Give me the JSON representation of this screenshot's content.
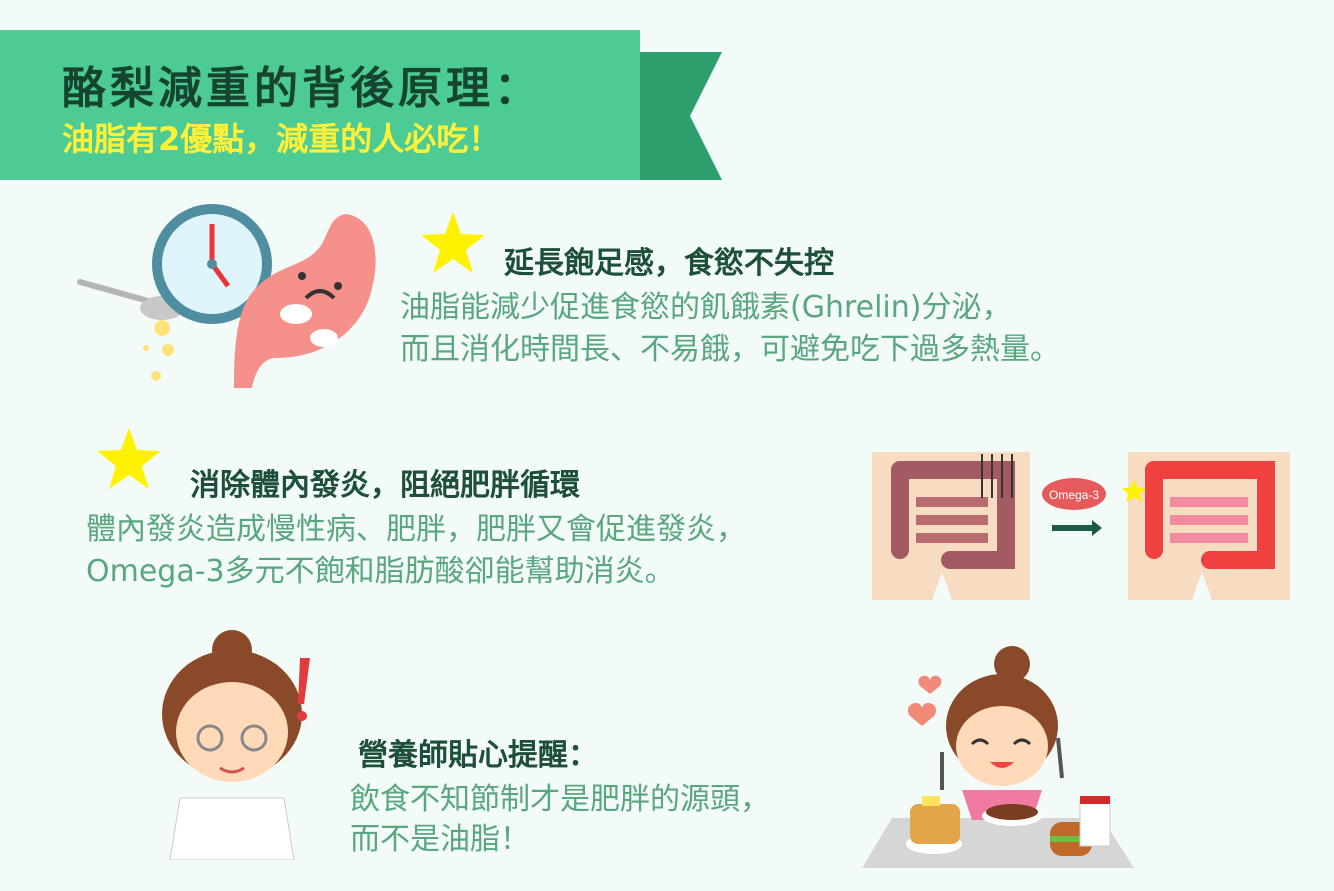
{
  "banner": {
    "title": "酪梨減重的背後原理：",
    "subtitle": "油脂有2優點，減重的人必吃！"
  },
  "section1": {
    "heading": "延長飽足感，食慾不失控",
    "lines": [
      "油脂能減少促進食慾的飢餓素(Ghrelin)分泌，",
      "而且消化時間長、不易餓，可避免吃下過多熱量。"
    ]
  },
  "section2": {
    "heading": "消除體內發炎，阻絕肥胖循環",
    "lines": [
      "體內發炎造成慢性病、肥胖，肥胖又會促進發炎，",
      "Omega-3多元不飽和脂肪酸卻能幫助消炎。"
    ],
    "omega_label": "Omega-3"
  },
  "section3": {
    "heading": "營養師貼心提醒：",
    "lines": [
      "飲食不知節制才是肥胖的源頭，",
      "而不是油脂！"
    ]
  },
  "colors": {
    "banner_green": "#4dcb94",
    "banner_dark_green": "#2e9e6d",
    "title_dark": "#16452f",
    "subtitle_yellow": "#fff13a",
    "heading": "#1e4f38",
    "body_text": "#5aa67f",
    "star_yellow": "#fff200"
  },
  "icons": [
    "star-icon",
    "clock-icon",
    "stomach-icon",
    "spoon-icon",
    "intestine-icon",
    "arrow-icon",
    "dietitian-icon",
    "eating-girl-icon"
  ]
}
